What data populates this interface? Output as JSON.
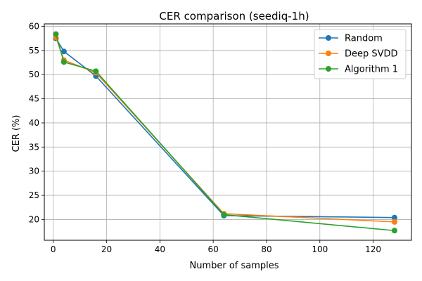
{
  "chart_data": {
    "type": "line",
    "title": "CER comparison (seediq-1h)",
    "xlabel": "Number of samples",
    "ylabel": "CER (%)",
    "xlim": [
      -3.35,
      134.35
    ],
    "ylim": [
      15.7,
      60.5
    ],
    "xticks": [
      0,
      20,
      40,
      60,
      80,
      100,
      120
    ],
    "yticks": [
      20,
      25,
      30,
      35,
      40,
      45,
      50,
      55,
      60
    ],
    "grid": true,
    "legend_position": "top-right",
    "x": [
      1,
      4,
      16,
      64,
      128
    ],
    "series": [
      {
        "name": "Random",
        "color": "#1f77b4",
        "values": [
          57.5,
          54.8,
          49.7,
          20.8,
          20.4
        ]
      },
      {
        "name": "Deep SVDD",
        "color": "#ff7f0e",
        "values": [
          57.7,
          53.0,
          50.4,
          21.2,
          19.5
        ]
      },
      {
        "name": "Algorithm 1",
        "color": "#2ca02c",
        "values": [
          58.4,
          52.6,
          50.7,
          21.0,
          17.7
        ]
      }
    ]
  }
}
